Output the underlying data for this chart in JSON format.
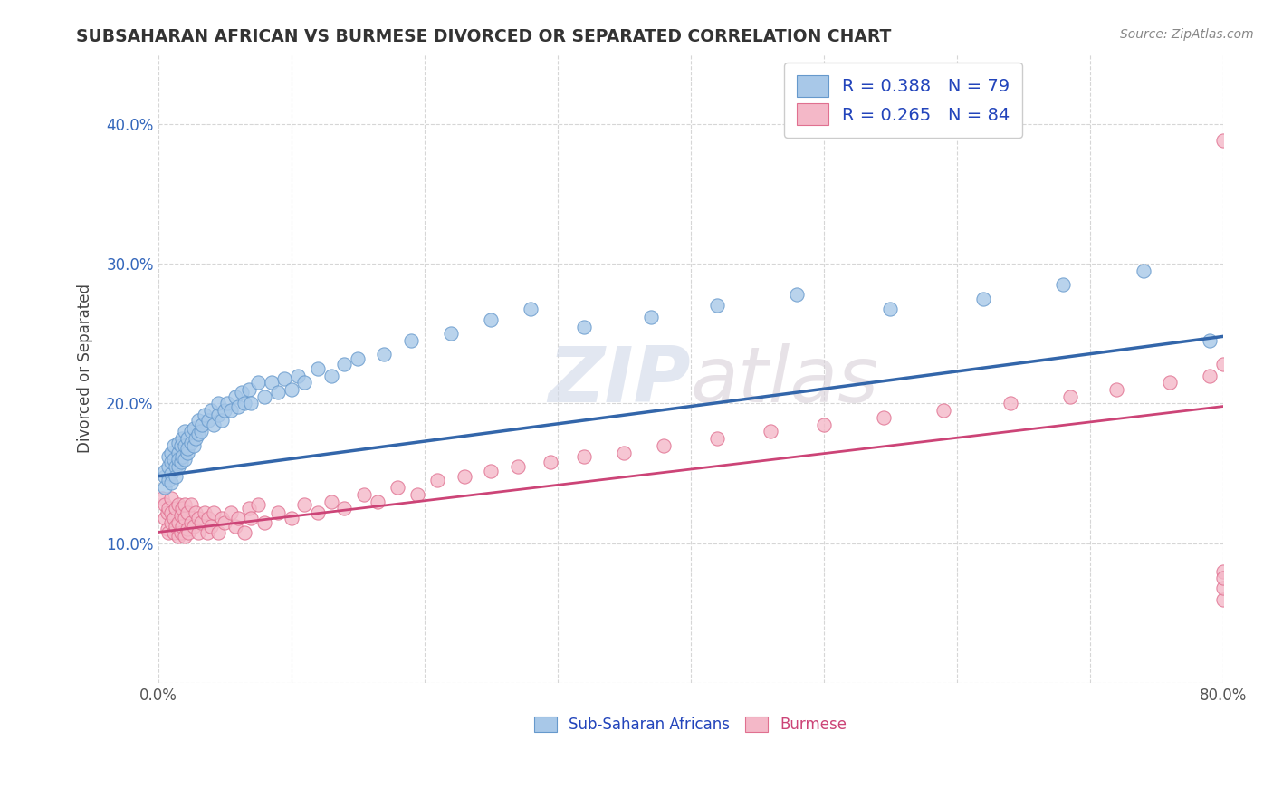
{
  "title": "SUBSAHARAN AFRICAN VS BURMESE DIVORCED OR SEPARATED CORRELATION CHART",
  "source_text": "Source: ZipAtlas.com",
  "ylabel": "Divorced or Separated",
  "xlim": [
    0.0,
    0.8
  ],
  "ylim": [
    0.0,
    0.45
  ],
  "xticks": [
    0.0,
    0.1,
    0.2,
    0.3,
    0.4,
    0.5,
    0.6,
    0.7,
    0.8
  ],
  "xticklabels": [
    "0.0%",
    "",
    "",
    "",
    "",
    "",
    "",
    "",
    "80.0%"
  ],
  "yticks": [
    0.0,
    0.1,
    0.2,
    0.3,
    0.4
  ],
  "yticklabels": [
    "",
    "10.0%",
    "20.0%",
    "30.0%",
    "40.0%"
  ],
  "legend_r1": "R = 0.388",
  "legend_n1": "N = 79",
  "legend_r2": "R = 0.265",
  "legend_n2": "N = 84",
  "blue_color": "#a8c8e8",
  "pink_color": "#f4b8c8",
  "blue_edge_color": "#6699cc",
  "pink_edge_color": "#e07090",
  "blue_line_color": "#3366aa",
  "pink_line_color": "#cc4477",
  "background_color": "#ffffff",
  "grid_color": "#cccccc",
  "title_color": "#333333",
  "blue_scatter_x": [
    0.005,
    0.005,
    0.005,
    0.008,
    0.008,
    0.008,
    0.01,
    0.01,
    0.01,
    0.01,
    0.012,
    0.012,
    0.013,
    0.013,
    0.015,
    0.015,
    0.015,
    0.015,
    0.017,
    0.017,
    0.018,
    0.018,
    0.02,
    0.02,
    0.02,
    0.022,
    0.022,
    0.022,
    0.025,
    0.025,
    0.027,
    0.027,
    0.028,
    0.03,
    0.03,
    0.032,
    0.033,
    0.035,
    0.038,
    0.04,
    0.042,
    0.045,
    0.045,
    0.048,
    0.05,
    0.052,
    0.055,
    0.058,
    0.06,
    0.063,
    0.065,
    0.068,
    0.07,
    0.075,
    0.08,
    0.085,
    0.09,
    0.095,
    0.1,
    0.105,
    0.11,
    0.12,
    0.13,
    0.14,
    0.15,
    0.17,
    0.19,
    0.22,
    0.25,
    0.28,
    0.32,
    0.37,
    0.42,
    0.48,
    0.55,
    0.62,
    0.68,
    0.74,
    0.79
  ],
  "blue_scatter_y": [
    0.148,
    0.152,
    0.14,
    0.155,
    0.145,
    0.162,
    0.15,
    0.158,
    0.165,
    0.143,
    0.16,
    0.17,
    0.155,
    0.148,
    0.165,
    0.155,
    0.172,
    0.16,
    0.158,
    0.17,
    0.162,
    0.175,
    0.16,
    0.17,
    0.18,
    0.165,
    0.175,
    0.168,
    0.172,
    0.18,
    0.17,
    0.182,
    0.175,
    0.178,
    0.188,
    0.18,
    0.185,
    0.192,
    0.188,
    0.195,
    0.185,
    0.192,
    0.2,
    0.188,
    0.195,
    0.2,
    0.195,
    0.205,
    0.198,
    0.208,
    0.2,
    0.21,
    0.2,
    0.215,
    0.205,
    0.215,
    0.208,
    0.218,
    0.21,
    0.22,
    0.215,
    0.225,
    0.22,
    0.228,
    0.232,
    0.235,
    0.245,
    0.25,
    0.26,
    0.268,
    0.255,
    0.262,
    0.27,
    0.278,
    0.268,
    0.275,
    0.285,
    0.295,
    0.245
  ],
  "pink_scatter_x": [
    0.003,
    0.005,
    0.005,
    0.007,
    0.007,
    0.008,
    0.008,
    0.01,
    0.01,
    0.01,
    0.012,
    0.012,
    0.013,
    0.013,
    0.015,
    0.015,
    0.015,
    0.017,
    0.017,
    0.018,
    0.018,
    0.02,
    0.02,
    0.02,
    0.022,
    0.022,
    0.023,
    0.025,
    0.025,
    0.027,
    0.028,
    0.03,
    0.03,
    0.032,
    0.035,
    0.037,
    0.038,
    0.04,
    0.042,
    0.045,
    0.048,
    0.05,
    0.055,
    0.058,
    0.06,
    0.065,
    0.068,
    0.07,
    0.075,
    0.08,
    0.09,
    0.1,
    0.11,
    0.12,
    0.13,
    0.14,
    0.155,
    0.165,
    0.18,
    0.195,
    0.21,
    0.23,
    0.25,
    0.27,
    0.295,
    0.32,
    0.35,
    0.38,
    0.42,
    0.46,
    0.5,
    0.545,
    0.59,
    0.64,
    0.685,
    0.72,
    0.76,
    0.79,
    0.8,
    0.8,
    0.8,
    0.8,
    0.8,
    0.8
  ],
  "pink_scatter_y": [
    0.132,
    0.118,
    0.128,
    0.11,
    0.122,
    0.108,
    0.125,
    0.115,
    0.122,
    0.132,
    0.108,
    0.118,
    0.112,
    0.125,
    0.105,
    0.115,
    0.128,
    0.108,
    0.12,
    0.112,
    0.125,
    0.105,
    0.118,
    0.128,
    0.11,
    0.122,
    0.108,
    0.115,
    0.128,
    0.112,
    0.122,
    0.108,
    0.118,
    0.115,
    0.122,
    0.108,
    0.118,
    0.112,
    0.122,
    0.108,
    0.118,
    0.115,
    0.122,
    0.112,
    0.118,
    0.108,
    0.125,
    0.118,
    0.128,
    0.115,
    0.122,
    0.118,
    0.128,
    0.122,
    0.13,
    0.125,
    0.135,
    0.13,
    0.14,
    0.135,
    0.145,
    0.148,
    0.152,
    0.155,
    0.158,
    0.162,
    0.165,
    0.17,
    0.175,
    0.18,
    0.185,
    0.19,
    0.195,
    0.2,
    0.205,
    0.21,
    0.215,
    0.22,
    0.228,
    0.08,
    0.06,
    0.068,
    0.075,
    0.388
  ],
  "blue_trend_x": [
    0.0,
    0.8
  ],
  "blue_trend_y": [
    0.148,
    0.248
  ],
  "pink_trend_x": [
    0.0,
    0.8
  ],
  "pink_trend_y": [
    0.108,
    0.198
  ]
}
